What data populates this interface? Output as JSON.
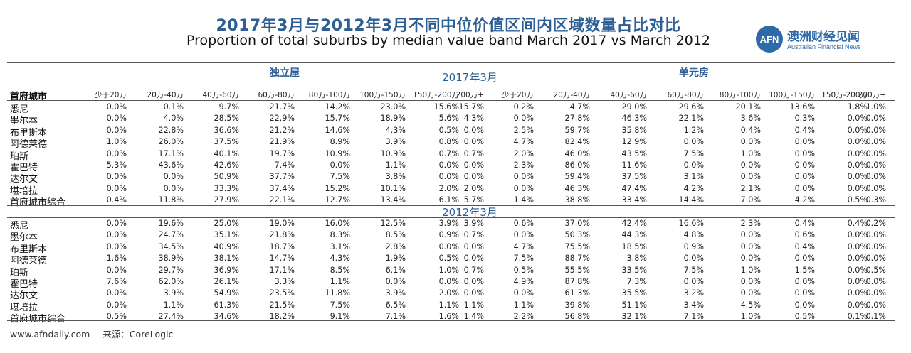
{
  "title_zh": "2017年3月与2012年3月不同中位价值区间内区域数量占比对比",
  "title_en": "Proportion of total suburbs by median value band March 2017 vs March 2012",
  "logo": {
    "mark": "AFN",
    "name_zh": "澳洲财经见闻",
    "name_en": "Australian Financial News"
  },
  "groups": {
    "house": "独立屋",
    "unit": "单元房"
  },
  "year_2017": "2017年3月",
  "year_2012": "2012年3月",
  "city_header": "首府城市",
  "bands": [
    "少于20万",
    "20万-40万",
    "40万-60万",
    "60万-80万",
    "80万-100万",
    "100万-150万",
    "150万-200万",
    "200万+"
  ],
  "data_2017": [
    {
      "city": "悉尼",
      "house": [
        "0.0%",
        "0.1%",
        "9.7%",
        "21.7%",
        "14.2%",
        "23.0%",
        "15.6%",
        "15.7%"
      ],
      "unit": [
        "0.2%",
        "4.7%",
        "29.0%",
        "29.6%",
        "20.1%",
        "13.6%",
        "1.8%",
        "1.0%"
      ]
    },
    {
      "city": "墨尔本",
      "house": [
        "0.0%",
        "4.0%",
        "28.5%",
        "22.9%",
        "15.7%",
        "18.9%",
        "5.6%",
        "4.3%"
      ],
      "unit": [
        "0.0%",
        "27.8%",
        "46.3%",
        "22.1%",
        "3.6%",
        "0.3%",
        "0.0%",
        "0.0%"
      ]
    },
    {
      "city": "布里斯本",
      "house": [
        "0.0%",
        "22.8%",
        "36.6%",
        "21.2%",
        "14.6%",
        "4.3%",
        "0.5%",
        "0.0%"
      ],
      "unit": [
        "2.5%",
        "59.7%",
        "35.8%",
        "1.2%",
        "0.4%",
        "0.4%",
        "0.0%",
        "0.0%"
      ]
    },
    {
      "city": "阿德莱德",
      "house": [
        "1.0%",
        "26.0%",
        "37.5%",
        "21.9%",
        "8.9%",
        "3.9%",
        "0.8%",
        "0.0%"
      ],
      "unit": [
        "4.7%",
        "82.4%",
        "12.9%",
        "0.0%",
        "0.0%",
        "0.0%",
        "0.0%",
        "0.0%"
      ]
    },
    {
      "city": "珀斯",
      "house": [
        "0.0%",
        "17.1%",
        "40.1%",
        "19.7%",
        "10.9%",
        "10.9%",
        "0.7%",
        "0.7%"
      ],
      "unit": [
        "2.0%",
        "46.0%",
        "43.5%",
        "7.5%",
        "1.0%",
        "0.0%",
        "0.0%",
        "0.0%"
      ]
    },
    {
      "city": "霍巴特",
      "house": [
        "5.3%",
        "43.6%",
        "42.6%",
        "7.4%",
        "0.0%",
        "1.1%",
        "0.0%",
        "0.0%"
      ],
      "unit": [
        "2.3%",
        "86.0%",
        "11.6%",
        "0.0%",
        "0.0%",
        "0.0%",
        "0.0%",
        "0.0%"
      ]
    },
    {
      "city": "达尔文",
      "house": [
        "0.0%",
        "0.0%",
        "50.9%",
        "37.7%",
        "7.5%",
        "3.8%",
        "0.0%",
        "0.0%"
      ],
      "unit": [
        "0.0%",
        "59.4%",
        "37.5%",
        "3.1%",
        "0.0%",
        "0.0%",
        "0.0%",
        "0.0%"
      ]
    },
    {
      "city": "堪培拉",
      "house": [
        "0.0%",
        "0.0%",
        "33.3%",
        "37.4%",
        "15.2%",
        "10.1%",
        "2.0%",
        "2.0%"
      ],
      "unit": [
        "0.0%",
        "46.3%",
        "47.4%",
        "4.2%",
        "2.1%",
        "0.0%",
        "0.0%",
        "0.0%"
      ]
    },
    {
      "city": "首府城市综合",
      "house": [
        "0.4%",
        "11.8%",
        "27.9%",
        "22.1%",
        "12.7%",
        "13.4%",
        "6.1%",
        "5.7%"
      ],
      "unit": [
        "1.4%",
        "38.8%",
        "33.4%",
        "14.4%",
        "7.0%",
        "4.2%",
        "0.5%",
        "0.3%"
      ]
    }
  ],
  "data_2012": [
    {
      "city": "悉尼",
      "house": [
        "0.0%",
        "19.6%",
        "25.0%",
        "19.0%",
        "16.0%",
        "12.5%",
        "3.9%",
        "3.9%"
      ],
      "unit": [
        "0.6%",
        "37.0%",
        "42.4%",
        "16.6%",
        "2.3%",
        "0.4%",
        "0.4%",
        "0.2%"
      ]
    },
    {
      "city": "墨尔本",
      "house": [
        "0.0%",
        "24.7%",
        "35.1%",
        "21.8%",
        "8.3%",
        "8.5%",
        "0.9%",
        "0.7%"
      ],
      "unit": [
        "0.0%",
        "50.3%",
        "44.3%",
        "4.8%",
        "0.0%",
        "0.6%",
        "0.0%",
        "0.0%"
      ]
    },
    {
      "city": "布里斯本",
      "house": [
        "0.0%",
        "34.5%",
        "40.9%",
        "18.7%",
        "3.1%",
        "2.8%",
        "0.0%",
        "0.0%"
      ],
      "unit": [
        "4.7%",
        "75.5%",
        "18.5%",
        "0.9%",
        "0.0%",
        "0.4%",
        "0.0%",
        "0.0%"
      ]
    },
    {
      "city": "阿德莱德",
      "house": [
        "1.6%",
        "38.9%",
        "38.1%",
        "14.7%",
        "4.3%",
        "1.9%",
        "0.5%",
        "0.0%"
      ],
      "unit": [
        "7.5%",
        "88.7%",
        "3.8%",
        "0.0%",
        "0.0%",
        "0.0%",
        "0.0%",
        "0.0%"
      ]
    },
    {
      "city": "珀斯",
      "house": [
        "0.0%",
        "29.7%",
        "36.9%",
        "17.1%",
        "8.5%",
        "6.1%",
        "1.0%",
        "0.7%"
      ],
      "unit": [
        "0.5%",
        "55.5%",
        "33.5%",
        "7.5%",
        "1.0%",
        "1.5%",
        "0.0%",
        "0.5%"
      ]
    },
    {
      "city": "霍巴特",
      "house": [
        "7.6%",
        "62.0%",
        "26.1%",
        "3.3%",
        "1.1%",
        "0.0%",
        "0.0%",
        "0.0%"
      ],
      "unit": [
        "4.9%",
        "87.8%",
        "7.3%",
        "0.0%",
        "0.0%",
        "0.0%",
        "0.0%",
        "0.0%"
      ]
    },
    {
      "city": "达尔文",
      "house": [
        "0.0%",
        "3.9%",
        "54.9%",
        "23.5%",
        "11.8%",
        "3.9%",
        "2.0%",
        "0.0%"
      ],
      "unit": [
        "0.0%",
        "61.3%",
        "35.5%",
        "3.2%",
        "0.0%",
        "0.0%",
        "0.0%",
        "0.0%"
      ]
    },
    {
      "city": "堪培拉",
      "house": [
        "0.0%",
        "1.1%",
        "61.3%",
        "21.5%",
        "7.5%",
        "6.5%",
        "1.1%",
        "1.1%"
      ],
      "unit": [
        "1.1%",
        "39.8%",
        "51.1%",
        "3.4%",
        "4.5%",
        "0.0%",
        "0.0%",
        "0.0%"
      ]
    },
    {
      "city": "首府城市综合",
      "house": [
        "0.5%",
        "27.4%",
        "34.6%",
        "18.2%",
        "9.1%",
        "7.1%",
        "1.6%",
        "1.4%"
      ],
      "unit": [
        "2.2%",
        "56.8%",
        "32.1%",
        "7.1%",
        "1.0%",
        "0.5%",
        "0.1%",
        "0.1%"
      ]
    }
  ],
  "footer": {
    "site": "www.afndaily.com",
    "source_label": "来源：",
    "source": "CoreLogic"
  }
}
